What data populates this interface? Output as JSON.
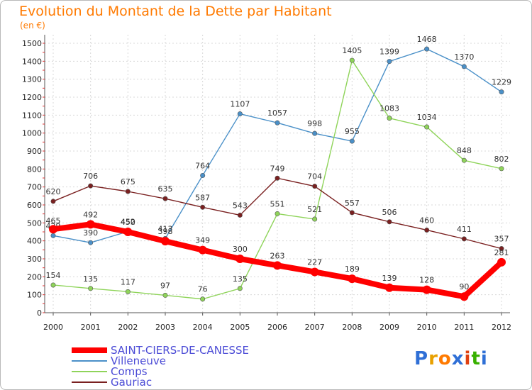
{
  "title": "Evolution du Montant de la Dette par Habitant",
  "subtitle": "(en €)",
  "brand": {
    "text": "Proxiti",
    "colors": [
      "#2f6fd6",
      "#e8a000",
      "#ff7a00",
      "#2f6fd6",
      "#e04010",
      "#38b000",
      "#2f6fd6"
    ]
  },
  "chart_data": {
    "type": "line",
    "title": "Evolution du Montant de la Dette par Habitant",
    "ylabel": "(en €)",
    "xlabel": "",
    "categories": [
      "2000",
      "2001",
      "2002",
      "2003",
      "2004",
      "2005",
      "2006",
      "2007",
      "2008",
      "2009",
      "2010",
      "2011",
      "2012"
    ],
    "ylim": [
      0,
      1500
    ],
    "yticks": [
      0,
      100,
      200,
      300,
      400,
      500,
      600,
      700,
      800,
      900,
      1000,
      1100,
      1200,
      1300,
      1400,
      1500
    ],
    "grid": true,
    "legend_position": "bottom-left",
    "series": [
      {
        "name": "SAINT-CIERS-DE-CANESSE",
        "color": "#ff0000",
        "values": [
          465,
          492,
          450,
          398,
          349,
          300,
          263,
          227,
          189,
          139,
          128,
          90,
          281
        ],
        "labels": [
          "465",
          "492",
          "450",
          "398",
          "349",
          "300",
          "263",
          "227",
          "189",
          "139",
          "128",
          "90",
          "281"
        ]
      },
      {
        "name": "Villeneuve",
        "color": "#4a90c8",
        "values": [
          429,
          390,
          452,
          413,
          764,
          1107,
          1057,
          998,
          955,
          1399,
          1468,
          1370,
          1229
        ],
        "labels": [
          "429",
          "390",
          "452",
          "413",
          "764",
          "1107",
          "1057",
          "998",
          "955",
          "1399",
          "1468",
          "1370",
          "1229"
        ]
      },
      {
        "name": "Comps",
        "color": "#8fd45a",
        "values": [
          154,
          135,
          117,
          97,
          76,
          135,
          551,
          521,
          1405,
          1083,
          1034,
          848,
          802
        ],
        "labels": [
          "154",
          "135",
          "117",
          "97",
          "76",
          "135",
          "551",
          "521",
          "1405",
          "1083",
          "1034",
          "848",
          "802"
        ]
      },
      {
        "name": "Gauriac",
        "color": "#7a2020",
        "values": [
          620,
          706,
          675,
          635,
          587,
          543,
          749,
          704,
          557,
          506,
          460,
          411,
          357
        ],
        "labels": [
          "620",
          "706",
          "675",
          "635",
          "587",
          "543",
          "749",
          "704",
          "557",
          "506",
          "460",
          "411",
          "357"
        ]
      }
    ]
  }
}
